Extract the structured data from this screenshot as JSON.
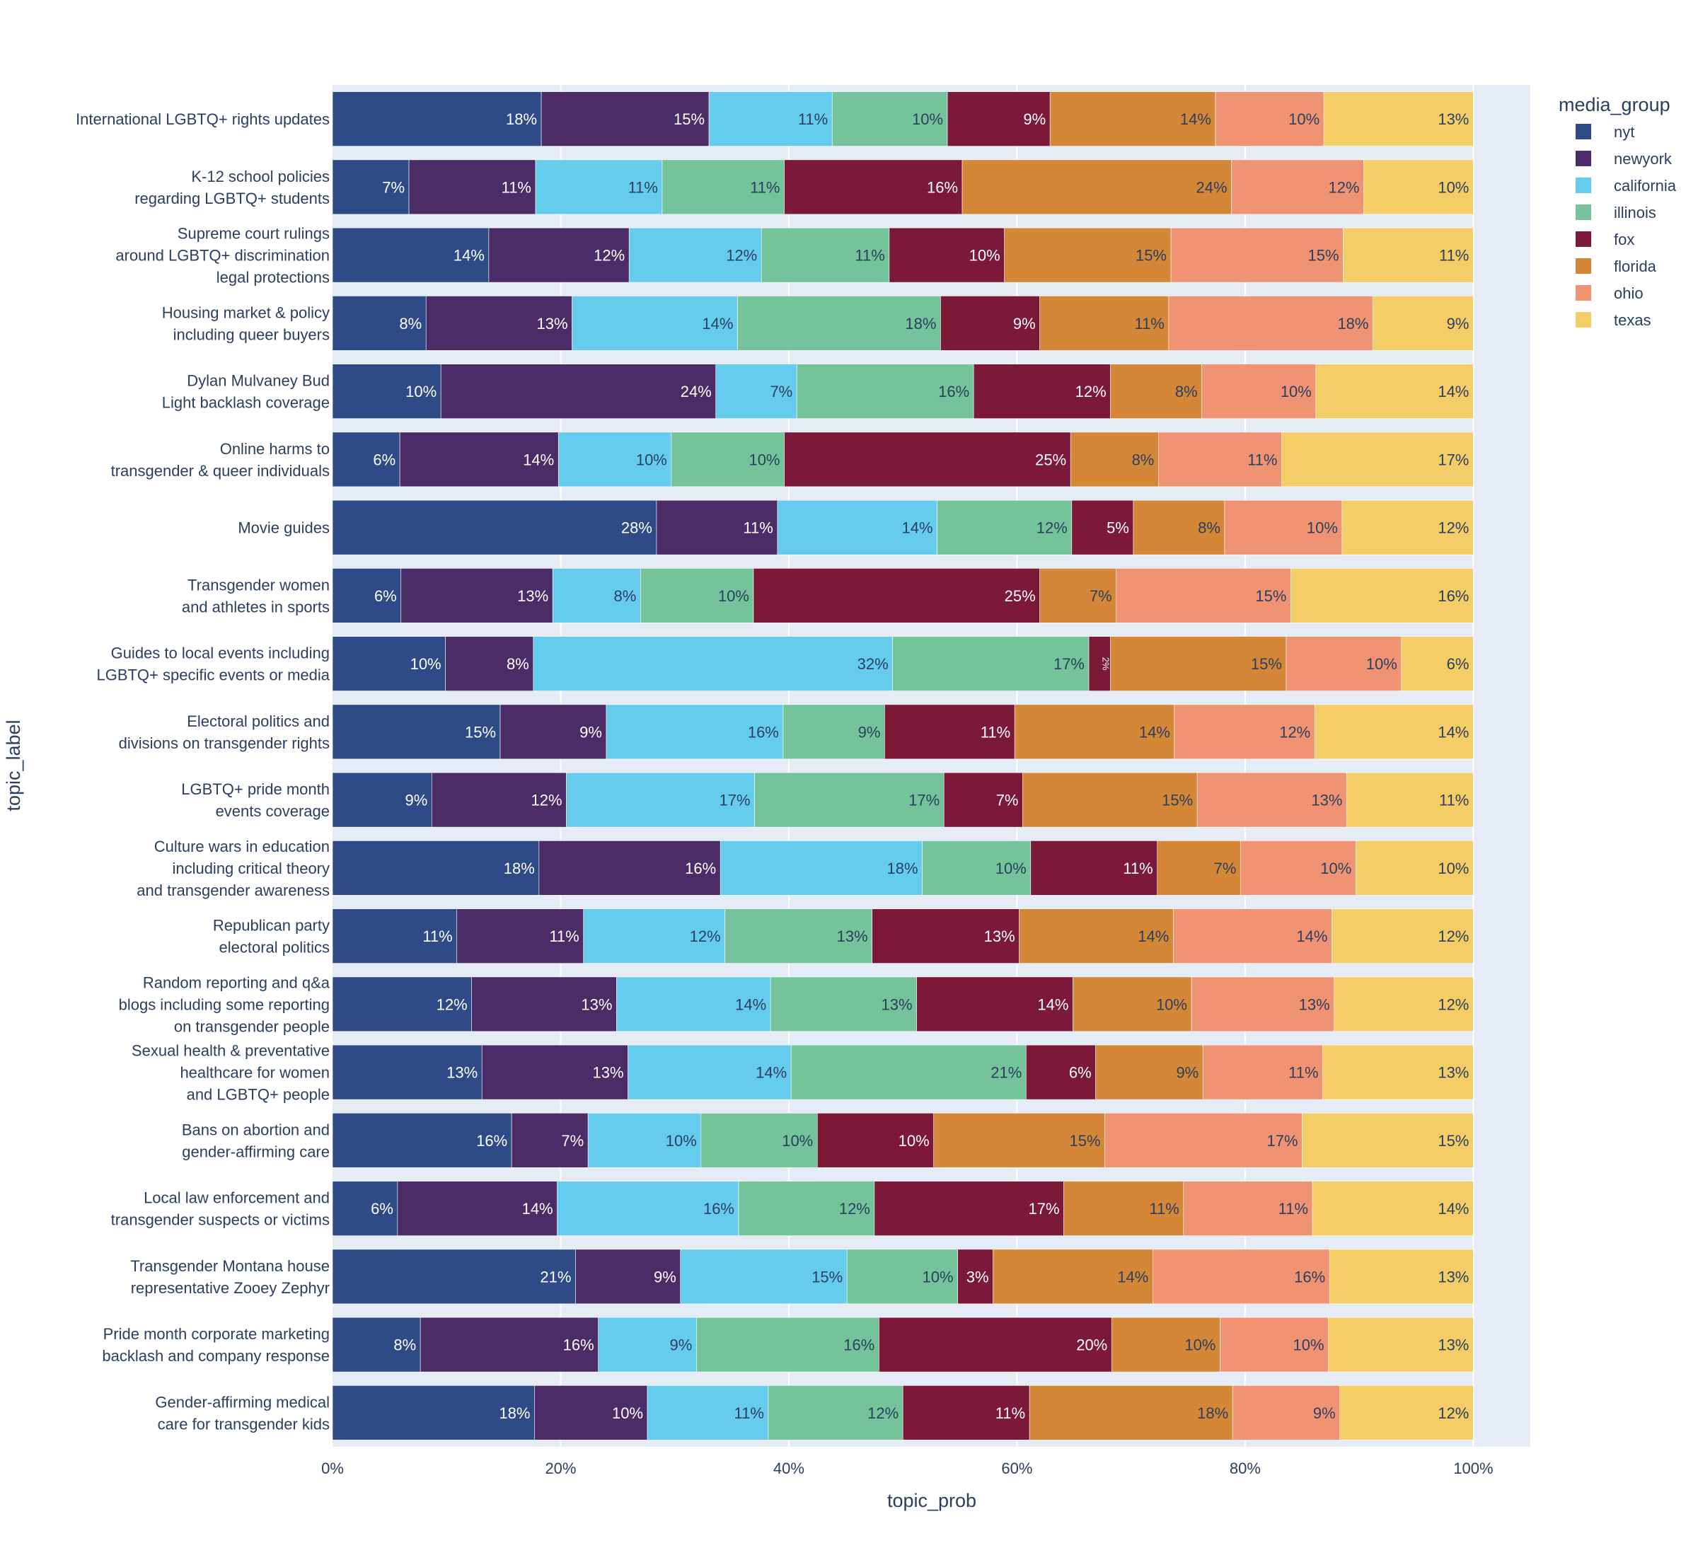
{
  "chart_data": {
    "type": "bar",
    "orientation": "horizontal",
    "barmode": "stack",
    "xlabel": "topic_prob",
    "ylabel": "topic_label",
    "xlim": [
      0,
      1.05
    ],
    "x_ticks": [
      "0%",
      "20%",
      "40%",
      "60%",
      "80%",
      "100%"
    ],
    "x_tick_values": [
      0,
      0.2,
      0.4,
      0.6,
      0.8,
      1.0
    ],
    "grid": true,
    "legend": {
      "title": "media_group",
      "placement": "top-right"
    },
    "categories": [
      "International LGBTQ+ rights updates",
      "K-12 school policies|regarding LGBTQ+ students",
      "Supreme court rulings|around LGBTQ+ discrimination|legal protections",
      "Housing market & policy|including queer buyers",
      "Dylan Mulvaney Bud|Light backlash coverage",
      "Online harms to|transgender & queer individuals",
      "Movie guides",
      "Transgender women|and athletes in sports",
      "Guides to local events including|LGBTQ+ specific events or media",
      "Electoral politics and|divisions on transgender rights",
      "LGBTQ+ pride month|events coverage",
      "Culture wars in education|including critical theory|and transgender awareness",
      "Republican party|electoral politics",
      "Random reporting and q&a|blogs including some reporting|on transgender people",
      "Sexual health & preventative|healthcare for women|and LGBTQ+ people",
      "Bans on abortion and|gender-affirming care",
      "Local law enforcement and|transgender suspects or victims",
      "Transgender Montana house|representative Zooey Zephyr",
      "Pride month corporate marketing|backlash and company response",
      "Gender-affirming medical|care for transgender kids"
    ],
    "series": [
      {
        "name": "nyt",
        "color": "#2e4b88",
        "label_color": "#ffffff",
        "values": [
          0.183,
          0.067,
          0.137,
          0.082,
          0.095,
          0.059,
          0.284,
          0.06,
          0.099,
          0.147,
          0.087,
          0.181,
          0.109,
          0.122,
          0.131,
          0.157,
          0.057,
          0.213,
          0.077,
          0.177
        ]
      },
      {
        "name": "newyork",
        "color": "#4b2c67",
        "label_color": "#ffffff",
        "values": [
          0.147,
          0.111,
          0.123,
          0.128,
          0.241,
          0.139,
          0.106,
          0.133,
          0.077,
          0.093,
          0.118,
          0.159,
          0.111,
          0.127,
          0.128,
          0.067,
          0.14,
          0.092,
          0.156,
          0.099
        ]
      },
      {
        "name": "california",
        "color": "#66ccee",
        "label_color": "#2a3f5f",
        "values": [
          0.108,
          0.111,
          0.116,
          0.145,
          0.071,
          0.099,
          0.14,
          0.077,
          0.315,
          0.155,
          0.165,
          0.177,
          0.124,
          0.135,
          0.143,
          0.099,
          0.159,
          0.146,
          0.086,
          0.106
        ]
      },
      {
        "name": "illinois",
        "color": "#74c39a",
        "label_color": "#2a3f5f",
        "values": [
          0.101,
          0.107,
          0.112,
          0.178,
          0.155,
          0.099,
          0.118,
          0.099,
          0.172,
          0.089,
          0.166,
          0.095,
          0.129,
          0.128,
          0.206,
          0.102,
          0.119,
          0.097,
          0.16,
          0.118
        ]
      },
      {
        "name": "fox",
        "color": "#7c1838",
        "label_color": "#ffffff",
        "values": [
          0.09,
          0.156,
          0.101,
          0.087,
          0.12,
          0.251,
          0.054,
          0.251,
          0.019,
          0.114,
          0.069,
          0.111,
          0.129,
          0.137,
          0.061,
          0.102,
          0.166,
          0.031,
          0.204,
          0.111
        ]
      },
      {
        "name": "florida",
        "color": "#d48736",
        "label_color": "#2a3f5f",
        "values": [
          0.145,
          0.236,
          0.146,
          0.113,
          0.08,
          0.077,
          0.08,
          0.067,
          0.154,
          0.14,
          0.153,
          0.073,
          0.135,
          0.104,
          0.094,
          0.15,
          0.105,
          0.14,
          0.095,
          0.178
        ]
      },
      {
        "name": "ohio",
        "color": "#ef9372",
        "label_color": "#2a3f5f",
        "values": [
          0.095,
          0.116,
          0.151,
          0.179,
          0.1,
          0.108,
          0.103,
          0.153,
          0.101,
          0.123,
          0.131,
          0.101,
          0.139,
          0.125,
          0.105,
          0.173,
          0.113,
          0.155,
          0.095,
          0.094
        ]
      },
      {
        "name": "texas",
        "color": "#f4cd66",
        "label_color": "#2a3f5f",
        "values": [
          0.131,
          0.096,
          0.114,
          0.088,
          0.138,
          0.168,
          0.115,
          0.16,
          0.063,
          0.139,
          0.111,
          0.103,
          0.124,
          0.122,
          0.132,
          0.15,
          0.141,
          0.126,
          0.127,
          0.117
        ]
      }
    ]
  }
}
